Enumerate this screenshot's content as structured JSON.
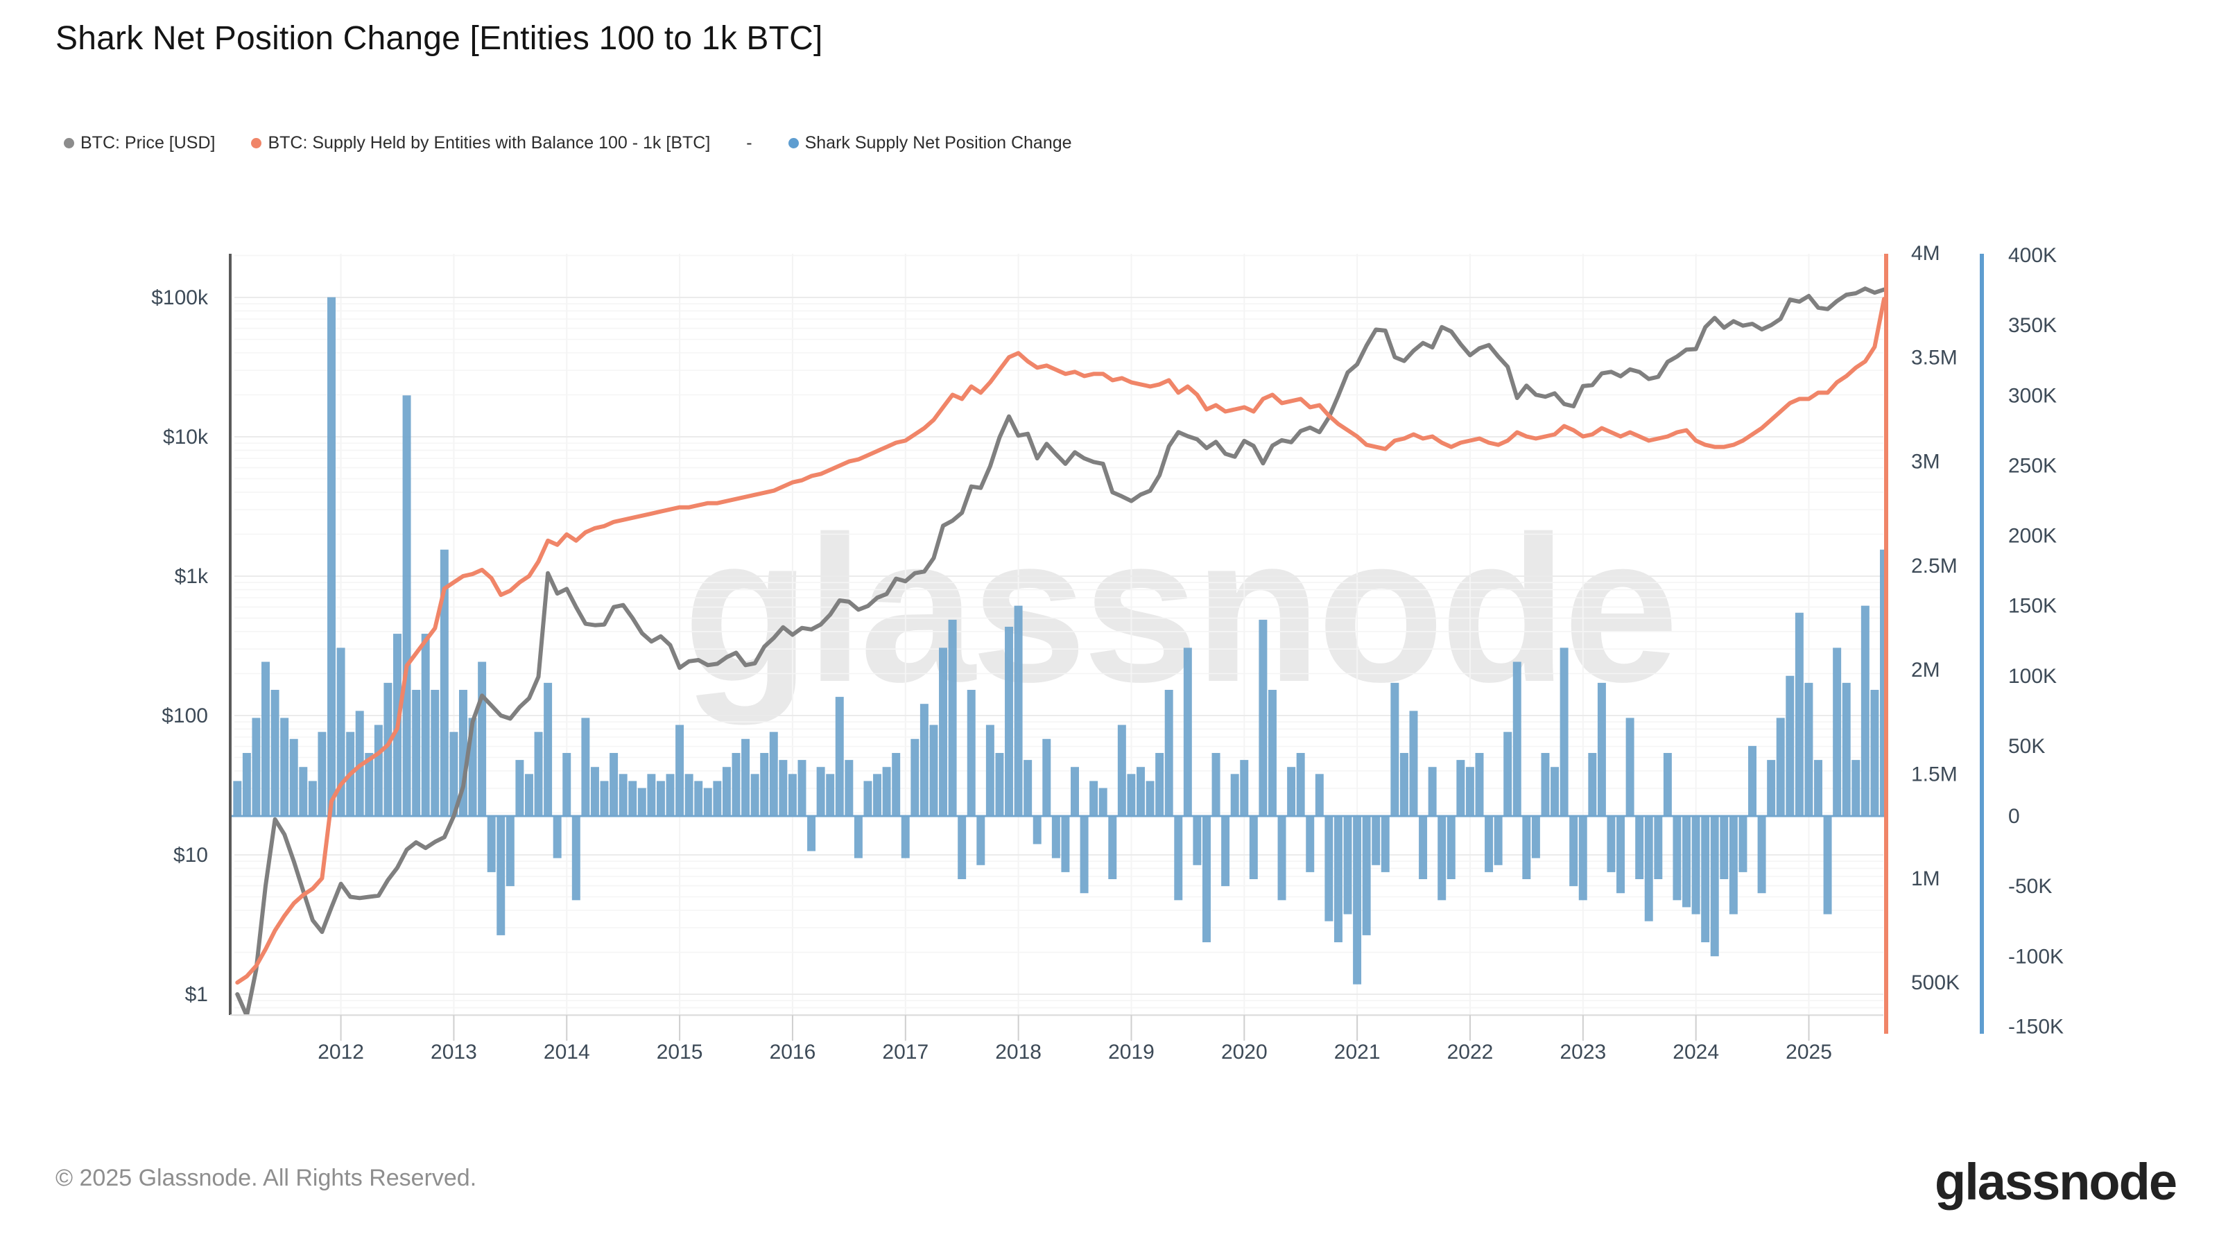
{
  "title": "Shark Net Position Change [Entities 100 to 1k BTC]",
  "legend": {
    "items": [
      {
        "type": "series",
        "label": "BTC: Price [USD]",
        "color": "#8c8c8c"
      },
      {
        "type": "series",
        "label": "BTC: Supply Held by Entities with Balance 100 - 1k [BTC]",
        "color": "#f08568"
      },
      {
        "type": "separator",
        "label": "-"
      },
      {
        "type": "series",
        "label": "Shark Supply Net Position Change",
        "color": "#5e9dd0"
      }
    ]
  },
  "watermark": "glassnode",
  "footer": {
    "copyright": "© 2025 Glassnode. All Rights Reserved.",
    "brand": "glassnode"
  },
  "chart_data": {
    "type": "mixed",
    "title": "Shark Net Position Change [Entities 100 to 1k BTC]",
    "x_axis": {
      "range": [
        2011.02,
        2025.66
      ],
      "tick_years": [
        2012,
        2013,
        2014,
        2015,
        2016,
        2017,
        2018,
        2019,
        2020,
        2021,
        2022,
        2023,
        2024,
        2025
      ]
    },
    "axes": {
      "price_left": {
        "scale": "log",
        "tick_labels": [
          "$100k",
          "$10k",
          "$1k",
          "$100",
          "$10",
          "$1"
        ],
        "tick_values": [
          100000,
          10000,
          1000,
          100,
          10,
          1
        ],
        "visible_range_usd": [
          0.7,
          205000
        ],
        "color": "#3d4a57"
      },
      "supply_right": {
        "scale": "linear",
        "tick_labels": [
          "4M",
          "3.5M",
          "3M",
          "2.5M",
          "2M",
          "1.5M",
          "1M",
          "500K"
        ],
        "tick_values_m": [
          4,
          3.5,
          3,
          2.5,
          2,
          1.5,
          1,
          0.5
        ],
        "axis_color": "#f08568"
      },
      "net_change_right": {
        "scale": "linear",
        "tick_labels": [
          "400K",
          "350K",
          "300K",
          "250K",
          "200K",
          "150K",
          "100K",
          "50K",
          "0",
          "-50K",
          "-100K",
          "-150K"
        ],
        "tick_values_k": [
          400,
          350,
          300,
          250,
          200,
          150,
          100,
          50,
          0,
          -50,
          -100,
          -150
        ],
        "axis_color": "#5e9dd0"
      }
    },
    "series": [
      {
        "name": "BTC: Price [USD]",
        "type": "line",
        "axis": "price_left",
        "color": "#7f7f7f",
        "unit": "USD",
        "x_start_decimal_year": 2011.0833,
        "x_step_years": 0.08333,
        "values": [
          1.0,
          0.7,
          1.5,
          6,
          18,
          14,
          9,
          5.5,
          3.4,
          2.8,
          4.2,
          6.2,
          5.0,
          4.9,
          5.0,
          5.1,
          6.6,
          8.1,
          10.9,
          12.3,
          11.2,
          12.4,
          13.4,
          19,
          31,
          90,
          139,
          118,
          100,
          95,
          115,
          133,
          190,
          1050,
          750,
          810,
          600,
          455,
          445,
          450,
          600,
          620,
          500,
          390,
          340,
          370,
          320,
          220,
          245,
          250,
          230,
          235,
          262,
          282,
          230,
          237,
          312,
          360,
          430,
          380,
          425,
          415,
          450,
          530,
          670,
          655,
          575,
          610,
          700,
          745,
          960,
          920,
          1050,
          1080,
          1350,
          2300,
          2500,
          2850,
          4400,
          4300,
          6150,
          9900,
          14000,
          10200,
          10500,
          7000,
          8900,
          7500,
          6400,
          7750,
          7000,
          6600,
          6400,
          4000,
          3740,
          3460,
          3850,
          4100,
          5300,
          8550,
          10800,
          10100,
          9600,
          8300,
          9200,
          7550,
          7200,
          9350,
          8600,
          6450,
          8650,
          9450,
          9150,
          11000,
          11650,
          10800,
          13800,
          19700,
          29000,
          33100,
          45200,
          58800,
          57800,
          37300,
          35000,
          41500,
          47100,
          43800,
          61300,
          57000,
          46200,
          38500,
          43200,
          45500,
          37700,
          31800,
          19000,
          23300,
          20050,
          19400,
          20500,
          17200,
          16550,
          23100,
          23500,
          28500,
          29250,
          27200,
          30450,
          29200,
          26000,
          26950,
          34500,
          37700,
          42250,
          42600,
          61200,
          71300,
          60600,
          67500,
          62700,
          64600,
          59000,
          63300,
          70200,
          96400,
          93400,
          102400,
          84400,
          82500,
          94200,
          104600,
          107100,
          115800,
          108200,
          114000
        ]
      },
      {
        "name": "BTC: Supply Held by Entities with Balance 100 - 1k [BTC]",
        "type": "line",
        "axis": "supply_right",
        "color": "#f08568",
        "unit": "M BTC",
        "x_start_decimal_year": 2011.0833,
        "x_step_years": 0.08333,
        "values": [
          0.5,
          0.53,
          0.58,
          0.66,
          0.75,
          0.82,
          0.88,
          0.92,
          0.95,
          1.0,
          1.37,
          1.45,
          1.5,
          1.54,
          1.57,
          1.6,
          1.64,
          1.72,
          2.02,
          2.08,
          2.14,
          2.2,
          2.39,
          2.42,
          2.45,
          2.46,
          2.48,
          2.44,
          2.36,
          2.38,
          2.42,
          2.45,
          2.52,
          2.62,
          2.6,
          2.65,
          2.62,
          2.66,
          2.68,
          2.69,
          2.71,
          2.72,
          2.73,
          2.74,
          2.75,
          2.76,
          2.77,
          2.78,
          2.78,
          2.79,
          2.8,
          2.8,
          2.81,
          2.82,
          2.83,
          2.84,
          2.85,
          2.86,
          2.88,
          2.9,
          2.91,
          2.93,
          2.94,
          2.96,
          2.98,
          3.0,
          3.01,
          3.03,
          3.05,
          3.07,
          3.09,
          3.1,
          3.13,
          3.16,
          3.2,
          3.26,
          3.32,
          3.3,
          3.36,
          3.33,
          3.38,
          3.44,
          3.5,
          3.52,
          3.48,
          3.45,
          3.46,
          3.44,
          3.42,
          3.43,
          3.41,
          3.42,
          3.42,
          3.39,
          3.4,
          3.38,
          3.37,
          3.36,
          3.37,
          3.39,
          3.33,
          3.36,
          3.32,
          3.25,
          3.27,
          3.24,
          3.25,
          3.26,
          3.24,
          3.3,
          3.32,
          3.28,
          3.29,
          3.3,
          3.26,
          3.27,
          3.22,
          3.18,
          3.15,
          3.12,
          3.08,
          3.07,
          3.06,
          3.1,
          3.11,
          3.13,
          3.11,
          3.12,
          3.09,
          3.07,
          3.09,
          3.1,
          3.11,
          3.09,
          3.08,
          3.1,
          3.14,
          3.12,
          3.11,
          3.12,
          3.13,
          3.17,
          3.15,
          3.12,
          3.13,
          3.16,
          3.14,
          3.12,
          3.14,
          3.12,
          3.1,
          3.11,
          3.12,
          3.14,
          3.15,
          3.1,
          3.08,
          3.07,
          3.07,
          3.08,
          3.1,
          3.13,
          3.16,
          3.2,
          3.24,
          3.28,
          3.3,
          3.3,
          3.33,
          3.33,
          3.38,
          3.41,
          3.45,
          3.48,
          3.55,
          3.78
        ]
      },
      {
        "name": "Shark Supply Net Position Change",
        "type": "bar",
        "axis": "net_change_right",
        "color": "#73a6ce",
        "unit": "K BTC",
        "x_start_decimal_year": 2011.0833,
        "x_step_years": 0.08333,
        "values": [
          25,
          45,
          70,
          110,
          90,
          70,
          55,
          35,
          25,
          60,
          370,
          120,
          60,
          75,
          45,
          65,
          95,
          130,
          300,
          90,
          130,
          90,
          190,
          60,
          90,
          70,
          110,
          -40,
          -85,
          -50,
          40,
          30,
          60,
          95,
          -30,
          45,
          -60,
          70,
          35,
          25,
          45,
          30,
          25,
          20,
          30,
          25,
          30,
          65,
          30,
          25,
          20,
          25,
          35,
          45,
          55,
          30,
          45,
          60,
          40,
          30,
          40,
          -25,
          35,
          30,
          85,
          40,
          -30,
          25,
          30,
          35,
          45,
          -30,
          55,
          80,
          65,
          120,
          140,
          -45,
          90,
          -35,
          65,
          45,
          135,
          150,
          40,
          -20,
          55,
          -30,
          -40,
          35,
          -55,
          25,
          20,
          -45,
          65,
          30,
          35,
          25,
          45,
          90,
          -60,
          120,
          -35,
          -90,
          45,
          -50,
          30,
          40,
          -45,
          140,
          90,
          -60,
          35,
          45,
          -40,
          30,
          -75,
          -90,
          -70,
          -120,
          -85,
          -35,
          -40,
          95,
          45,
          75,
          -45,
          35,
          -60,
          -45,
          40,
          35,
          45,
          -40,
          -35,
          60,
          110,
          -45,
          -30,
          45,
          35,
          120,
          -50,
          -60,
          45,
          95,
          -40,
          -55,
          70,
          -45,
          -75,
          -45,
          45,
          -60,
          -65,
          -70,
          -90,
          -100,
          -45,
          -70,
          -40,
          50,
          -55,
          40,
          70,
          100,
          145,
          95,
          40,
          -70,
          120,
          95,
          40,
          150,
          90,
          190
        ]
      }
    ],
    "layout_hints": {
      "grid": "log-minor horizontal + faint yearly vertical",
      "legend_position": "top-left",
      "watermark": "glassnode center"
    }
  }
}
